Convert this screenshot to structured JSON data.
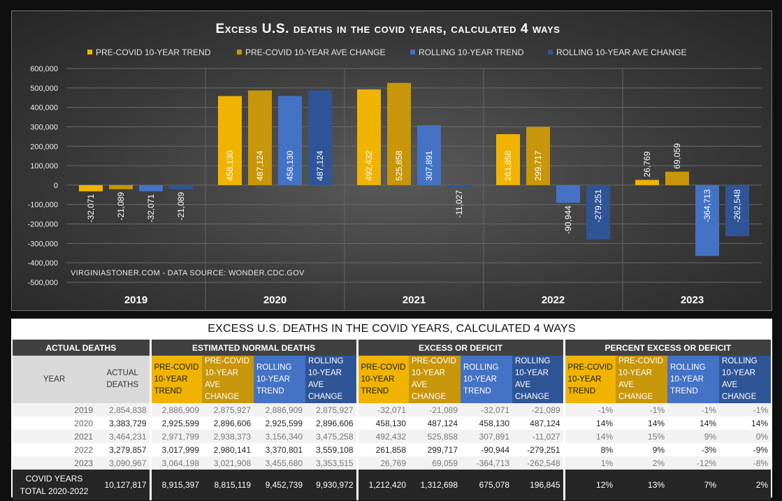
{
  "chart_data": {
    "type": "bar",
    "title": "Excess U.S. deaths in the covid years, calculated 4 ways",
    "categories": [
      "2019",
      "2020",
      "2021",
      "2022",
      "2023"
    ],
    "series": [
      {
        "name": "PRE-COVID 10-YEAR TREND",
        "color": "#f0b400",
        "values": [
          -32071,
          458130,
          492432,
          261858,
          26769
        ],
        "labels": [
          "-32,071",
          "458,130",
          "492,432",
          "261,858",
          "26,769"
        ]
      },
      {
        "name": "PRE-COVID 10-YEAR AVE CHANGE",
        "color": "#c8960a",
        "values": [
          -21089,
          487124,
          525858,
          299717,
          69059
        ],
        "labels": [
          "-21,089",
          "487,124",
          "525,858",
          "299,717",
          "69,059"
        ]
      },
      {
        "name": "ROLLING 10-YEAR TREND",
        "color": "#4472c4",
        "values": [
          -32071,
          458130,
          307891,
          -90944,
          -364713
        ],
        "labels": [
          "-32,071",
          "458,130",
          "307,891",
          "-90,944",
          "-364,713"
        ]
      },
      {
        "name": "ROLLING 10-YEAR AVE CHANGE",
        "color": "#2f5597",
        "values": [
          -21089,
          487124,
          -11027,
          -279251,
          -262548
        ],
        "labels": [
          "-21,089",
          "487,124",
          "-11,027",
          "-279,251",
          "-262,548"
        ]
      }
    ],
    "ylim": [
      -500000,
      600000
    ],
    "yticks": [
      "600,000",
      "500,000",
      "400,000",
      "300,000",
      "200,000",
      "100,000",
      "0",
      "-100,000",
      "-200,000",
      "-300,000",
      "-400,000",
      "-500,000"
    ],
    "grid": true,
    "legend_position": "top",
    "source_note": "VIRGINIASTONER.COM - DATA SOURCE: WONDER.CDC.GOV"
  },
  "table": {
    "title": "EXCESS U.S. DEATHS IN THE COVID YEARS, CALCULATED 4 WAYS",
    "groups": [
      "ACTUAL DEATHS",
      "ESTIMATED NORMAL DEATHS",
      "EXCESS OR DEFICIT",
      "PERCENT EXCESS OR DEFICIT"
    ],
    "col_year": "YEAR",
    "col_actual": "ACTUAL DEATHS",
    "method_cols": [
      "PRE-COVID 10-YEAR TREND",
      "PRE-COVID 10-YEAR AVE CHANGE",
      "ROLLING 10-YEAR TREND",
      "ROLLING 10-YEAR AVE CHANGE"
    ],
    "rows": [
      [
        "2019",
        "2,854,838",
        "2,886,909",
        "2,875,927",
        "2,886,909",
        "2,875,927",
        "-32,071",
        "-21,089",
        "-32,071",
        "-21,089",
        "-1%",
        "-1%",
        "-1%",
        "-1%"
      ],
      [
        "2020",
        "3,383,729",
        "2,925,599",
        "2,896,606",
        "2,925,599",
        "2,896,606",
        "458,130",
        "487,124",
        "458,130",
        "487,124",
        "14%",
        "14%",
        "14%",
        "14%"
      ],
      [
        "2021",
        "3,464,231",
        "2,971,799",
        "2,938,373",
        "3,156,340",
        "3,475,258",
        "492,432",
        "525,858",
        "307,891",
        "-11,027",
        "14%",
        "15%",
        "9%",
        "0%"
      ],
      [
        "2022",
        "3,279,857",
        "3,017,999",
        "2,980,141",
        "3,370,801",
        "3,559,108",
        "261,858",
        "299,717",
        "-90,944",
        "-279,251",
        "8%",
        "9%",
        "-3%",
        "-9%"
      ],
      [
        "2023",
        "3,090,967",
        "3,064,198",
        "3,021,908",
        "3,455,680",
        "3,353,515",
        "26,769",
        "69,059",
        "-364,713",
        "-262,548",
        "1%",
        "2%",
        "-12%",
        "-8%"
      ]
    ],
    "total": [
      "COVID YEARS TOTAL 2020-2022",
      "10,127,817",
      "8,915,397",
      "8,815,119",
      "9,452,739",
      "9,930,972",
      "1,212,420",
      "1,312,698",
      "675,078",
      "196,845",
      "12%",
      "13%",
      "7%",
      "2%"
    ]
  }
}
